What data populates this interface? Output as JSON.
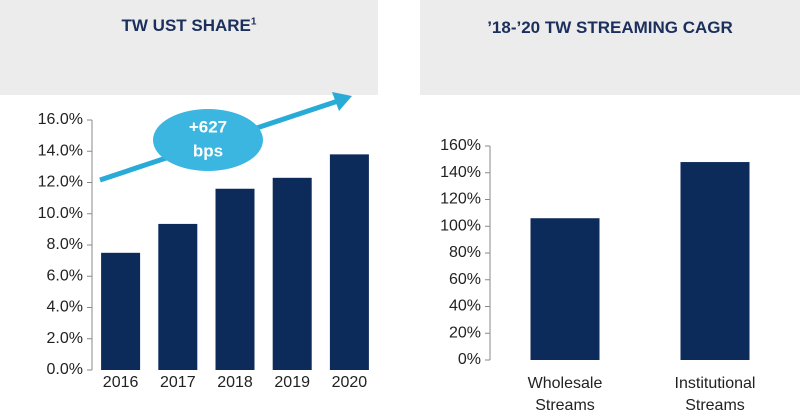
{
  "chart_data": [
    {
      "type": "bar",
      "title": "TW UST SHARE",
      "title_note": "1",
      "categories": [
        "2016",
        "2017",
        "2018",
        "2019",
        "2020"
      ],
      "values": [
        7.5,
        9.35,
        11.6,
        12.3,
        13.8
      ],
      "color": "#0c2a5a",
      "ylim": [
        0,
        16
      ],
      "yticks": [
        {
          "value": 0,
          "label": "0.0%"
        },
        {
          "value": 2,
          "label": "2.0%"
        },
        {
          "value": 4,
          "label": "4.0%"
        },
        {
          "value": 6,
          "label": "6.0%"
        },
        {
          "value": 8,
          "label": "8.0%"
        },
        {
          "value": 10,
          "label": "10.0%"
        },
        {
          "value": 12,
          "label": "12.0%"
        },
        {
          "value": 14,
          "label": "14.0%"
        },
        {
          "value": 16,
          "label": "16.0%"
        }
      ],
      "annotation": [
        "+627",
        "bps"
      ],
      "grid": false
    },
    {
      "type": "bar",
      "title": "’18-’20 TW STREAMING CAGR",
      "categories": [
        "Wholesale Streams",
        "Institutional Streams"
      ],
      "values": [
        106,
        148
      ],
      "color": "#0c2a5a",
      "ylim": [
        0,
        160
      ],
      "yticks": [
        {
          "value": 0,
          "label": "0%"
        },
        {
          "value": 20,
          "label": "20%"
        },
        {
          "value": 40,
          "label": "40%"
        },
        {
          "value": 60,
          "label": "60%"
        },
        {
          "value": 80,
          "label": "80%"
        },
        {
          "value": 100,
          "label": "100%"
        },
        {
          "value": 120,
          "label": "120%"
        },
        {
          "value": 140,
          "label": "140%"
        },
        {
          "value": 160,
          "label": "160%"
        }
      ],
      "grid": false
    }
  ]
}
